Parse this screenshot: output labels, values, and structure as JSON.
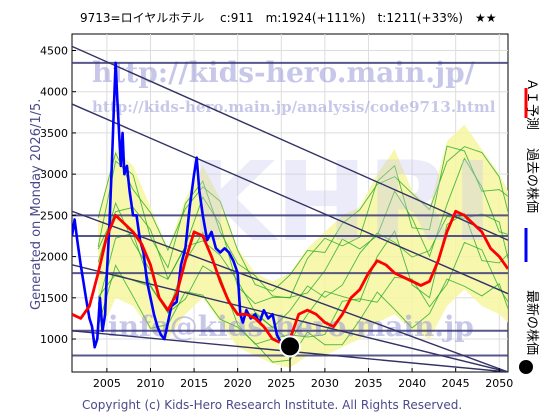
{
  "header": {
    "title": "9713=ロイヤルホテル　 c:911　m:1924(+111%)　t:1211(+33%)　★★"
  },
  "side_left": "Generated on Monday 2026/1/5.",
  "legend": {
    "ai": "ＡＩ予測",
    "past": "過去の株価",
    "latest": "最新の株価"
  },
  "watermarks": {
    "url": "http://kids-hero.main.jp/",
    "analysis": "http://kids-hero.main.jp/analysis/code9713.html",
    "mail": "info@kids-hero.main.jp",
    "big": "KHRI"
  },
  "copyright": "Copyright (c) Kids-Hero Research Institute. All Rights Reserved.",
  "colors": {
    "ai_prediction": "#ff0000",
    "past_price": "#0000ff",
    "latest_marker": "#000000",
    "band_fill": "#f6f6a0",
    "scenario": "#22aa22",
    "channel": "#333366"
  },
  "chart_data": {
    "type": "line",
    "xlim": [
      2001,
      2051
    ],
    "ylim": [
      600,
      4700
    ],
    "xticks": [
      2005,
      2010,
      2015,
      2020,
      2025,
      2030,
      2035,
      2040,
      2045,
      2050
    ],
    "yticks": [
      1000,
      1500,
      2000,
      2500,
      3000,
      3500,
      4000,
      4500
    ],
    "series": [
      {
        "name": "過去の株価",
        "color": "#0000ff",
        "points": [
          [
            2001.0,
            2250
          ],
          [
            2001.3,
            2450
          ],
          [
            2001.6,
            2200
          ],
          [
            2002.0,
            1900
          ],
          [
            2002.3,
            1700
          ],
          [
            2002.6,
            1500
          ],
          [
            2003.0,
            1250
          ],
          [
            2003.3,
            1150
          ],
          [
            2003.6,
            900
          ],
          [
            2003.9,
            1000
          ],
          [
            2004.2,
            1500
          ],
          [
            2004.5,
            1100
          ],
          [
            2004.8,
            1300
          ],
          [
            2005.0,
            1800
          ],
          [
            2005.3,
            2400
          ],
          [
            2005.6,
            3200
          ],
          [
            2005.8,
            3800
          ],
          [
            2006.0,
            4350
          ],
          [
            2006.2,
            3900
          ],
          [
            2006.4,
            3500
          ],
          [
            2006.6,
            3100
          ],
          [
            2006.8,
            3500
          ],
          [
            2007.0,
            3000
          ],
          [
            2007.3,
            3100
          ],
          [
            2007.6,
            2800
          ],
          [
            2008.0,
            2500
          ],
          [
            2008.4,
            2500
          ],
          [
            2008.8,
            2200
          ],
          [
            2009.2,
            2050
          ],
          [
            2009.6,
            1700
          ],
          [
            2010.0,
            1500
          ],
          [
            2010.4,
            1300
          ],
          [
            2010.8,
            1150
          ],
          [
            2011.2,
            1050
          ],
          [
            2011.6,
            1000
          ],
          [
            2012.0,
            1200
          ],
          [
            2012.4,
            1400
          ],
          [
            2013.0,
            1450
          ],
          [
            2013.5,
            1900
          ],
          [
            2014.0,
            2100
          ],
          [
            2014.5,
            2600
          ],
          [
            2015.0,
            3000
          ],
          [
            2015.3,
            3200
          ],
          [
            2015.6,
            2800
          ],
          [
            2016.0,
            2500
          ],
          [
            2016.5,
            2200
          ],
          [
            2017.0,
            2300
          ],
          [
            2017.5,
            2100
          ],
          [
            2018.0,
            2050
          ],
          [
            2018.5,
            2100
          ],
          [
            2019.0,
            2050
          ],
          [
            2019.5,
            1950
          ],
          [
            2020.0,
            1800
          ],
          [
            2020.3,
            1300
          ],
          [
            2020.6,
            1200
          ],
          [
            2021.0,
            1350
          ],
          [
            2021.5,
            1250
          ],
          [
            2022.0,
            1300
          ],
          [
            2022.5,
            1200
          ],
          [
            2023.0,
            1350
          ],
          [
            2023.5,
            1250
          ],
          [
            2024.0,
            1300
          ],
          [
            2024.5,
            1050
          ],
          [
            2025.0,
            950
          ],
          [
            2025.5,
            920
          ],
          [
            2026.0,
            911
          ]
        ]
      },
      {
        "name": "ＡＩ予測",
        "color": "#ff0000",
        "points": [
          [
            2001.0,
            1300
          ],
          [
            2002.0,
            1250
          ],
          [
            2003.0,
            1400
          ],
          [
            2004.0,
            1800
          ],
          [
            2005.0,
            2250
          ],
          [
            2006.0,
            2500
          ],
          [
            2007.0,
            2400
          ],
          [
            2008.0,
            2300
          ],
          [
            2009.0,
            2150
          ],
          [
            2010.0,
            1900
          ],
          [
            2011.0,
            1500
          ],
          [
            2012.0,
            1350
          ],
          [
            2013.0,
            1550
          ],
          [
            2014.0,
            1950
          ],
          [
            2015.0,
            2300
          ],
          [
            2016.0,
            2250
          ],
          [
            2017.0,
            2000
          ],
          [
            2018.0,
            1700
          ],
          [
            2019.0,
            1450
          ],
          [
            2020.0,
            1300
          ],
          [
            2021.0,
            1300
          ],
          [
            2022.0,
            1250
          ],
          [
            2023.0,
            1150
          ],
          [
            2024.0,
            1000
          ],
          [
            2025.0,
            950
          ],
          [
            2026.0,
            1000
          ],
          [
            2027.0,
            1300
          ],
          [
            2028.0,
            1350
          ],
          [
            2029.0,
            1300
          ],
          [
            2030.0,
            1200
          ],
          [
            2031.0,
            1150
          ],
          [
            2032.0,
            1300
          ],
          [
            2033.0,
            1500
          ],
          [
            2034.0,
            1600
          ],
          [
            2035.0,
            1800
          ],
          [
            2036.0,
            1950
          ],
          [
            2037.0,
            1900
          ],
          [
            2038.0,
            1800
          ],
          [
            2039.0,
            1750
          ],
          [
            2040.0,
            1700
          ],
          [
            2041.0,
            1650
          ],
          [
            2042.0,
            1700
          ],
          [
            2043.0,
            1950
          ],
          [
            2044.0,
            2300
          ],
          [
            2045.0,
            2550
          ],
          [
            2046.0,
            2500
          ],
          [
            2047.0,
            2400
          ],
          [
            2048.0,
            2300
          ],
          [
            2049.0,
            2100
          ],
          [
            2050.0,
            2000
          ],
          [
            2051.0,
            1850
          ]
        ]
      }
    ],
    "latest": {
      "x": 2026.0,
      "y": 911
    },
    "horizontal_levels": [
      4350,
      2500,
      2250,
      1800,
      1100,
      800
    ],
    "channel_lines": [
      {
        "x1": 2001,
        "y1": 4550,
        "x2": 2051,
        "y2": 2200
      },
      {
        "x1": 2001,
        "y1": 3850,
        "x2": 2051,
        "y2": 1550
      },
      {
        "x1": 2001,
        "y1": 2550,
        "x2": 2051,
        "y2": 600
      },
      {
        "x1": 2001,
        "y1": 1900,
        "x2": 2051,
        "y2": 600
      },
      {
        "x1": 2001,
        "y1": 1100,
        "x2": 2051,
        "y2": 600
      }
    ],
    "band": {
      "x": [
        2004,
        2006,
        2008,
        2010,
        2012,
        2014,
        2016,
        2018,
        2020,
        2022,
        2024,
        2026,
        2028,
        2030,
        2032,
        2034,
        2036,
        2038,
        2040,
        2042,
        2044,
        2046,
        2048,
        2050,
        2051
      ],
      "upper": [
        2500,
        3300,
        3100,
        2600,
        2100,
        2700,
        3100,
        2700,
        2100,
        1800,
        1700,
        1800,
        2100,
        2300,
        2500,
        2600,
        3000,
        3300,
        2800,
        2600,
        3400,
        3600,
        3300,
        3000,
        2800
      ],
      "lower": [
        1000,
        1500,
        1400,
        1100,
        1000,
        1300,
        1500,
        1200,
        900,
        800,
        700,
        650,
        800,
        800,
        900,
        1000,
        1200,
        1300,
        1100,
        1000,
        1400,
        1600,
        1400,
        1300,
        1200
      ]
    }
  }
}
